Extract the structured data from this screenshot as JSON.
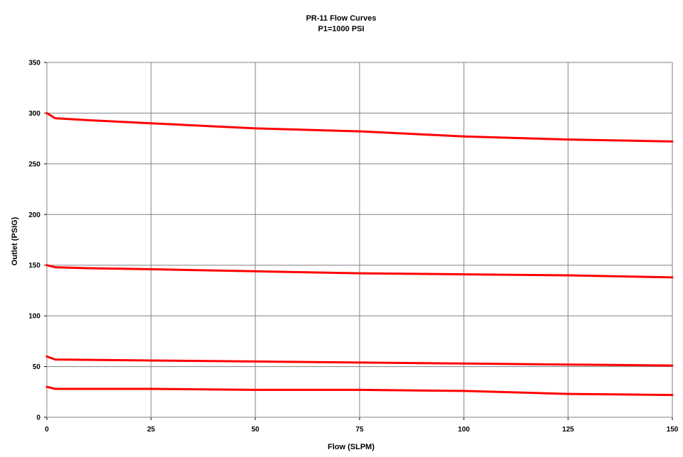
{
  "chart_data": {
    "type": "line",
    "title": "PR-11 Flow Curves",
    "subtitle": "P1=1000 PSI",
    "xlabel": "Flow (SLPM)",
    "ylabel": "Outlet (PSIG)",
    "xlim": [
      0,
      150
    ],
    "ylim": [
      0,
      350
    ],
    "x_ticks": [
      "0",
      "25",
      "50",
      "75",
      "100",
      "125",
      "150"
    ],
    "y_ticks": [
      "0",
      "50",
      "100",
      "150",
      "200",
      "250",
      "300",
      "350"
    ],
    "grid": true,
    "legend": "none",
    "series_color": "#ff0000",
    "series": [
      {
        "x": [
          0,
          2,
          10,
          25,
          50,
          75,
          100,
          125,
          150
        ],
        "values": [
          300,
          295,
          293,
          290,
          285,
          282,
          277,
          274,
          272
        ]
      },
      {
        "x": [
          0,
          2,
          10,
          25,
          50,
          75,
          100,
          125,
          150
        ],
        "values": [
          150,
          148,
          147,
          146,
          144,
          142,
          141,
          140,
          138
        ]
      },
      {
        "x": [
          0,
          2,
          25,
          50,
          75,
          100,
          125,
          150
        ],
        "values": [
          60,
          57,
          56,
          55,
          54,
          53,
          52,
          51
        ]
      },
      {
        "x": [
          0,
          2,
          25,
          50,
          75,
          100,
          125,
          150
        ],
        "values": [
          30,
          28,
          28,
          27,
          27,
          26,
          23,
          22
        ]
      }
    ]
  }
}
